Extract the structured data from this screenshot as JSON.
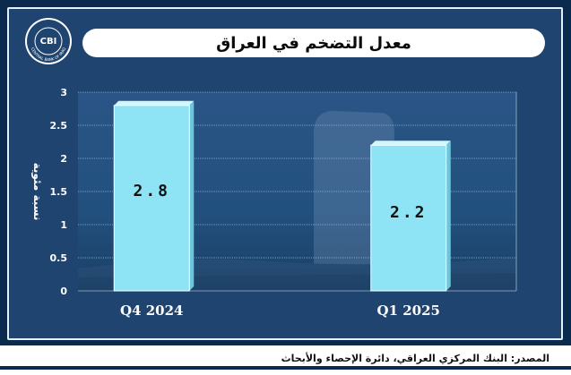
{
  "title": "معدل التضخم في العراق",
  "logo": {
    "text": "CBI",
    "ring_text": "CENTRAL BANK OF IRAQ"
  },
  "source": "المصدر: البنك المركزي العراقي، دائرة الإحصاء والأبحاث",
  "colors": {
    "bar": "#8ee3f4",
    "bar_edge": "#d4f5fc",
    "panel": "#1f4470",
    "frame": "#0b2b4e"
  },
  "chart_data": {
    "type": "bar",
    "categories": [
      "Q4  2024",
      "Q1  2025"
    ],
    "values": [
      2.8,
      2.2
    ],
    "data_labels": [
      "2.8",
      "2.2"
    ],
    "title": "معدل التضخم في العراق",
    "xlabel": "",
    "ylabel": "نسبة مئوية",
    "ylim": [
      0,
      3
    ],
    "yticks": [
      "0",
      "0.5",
      "1",
      "1.5",
      "2",
      "2.5",
      "3"
    ],
    "grid": true,
    "legend": "none"
  }
}
